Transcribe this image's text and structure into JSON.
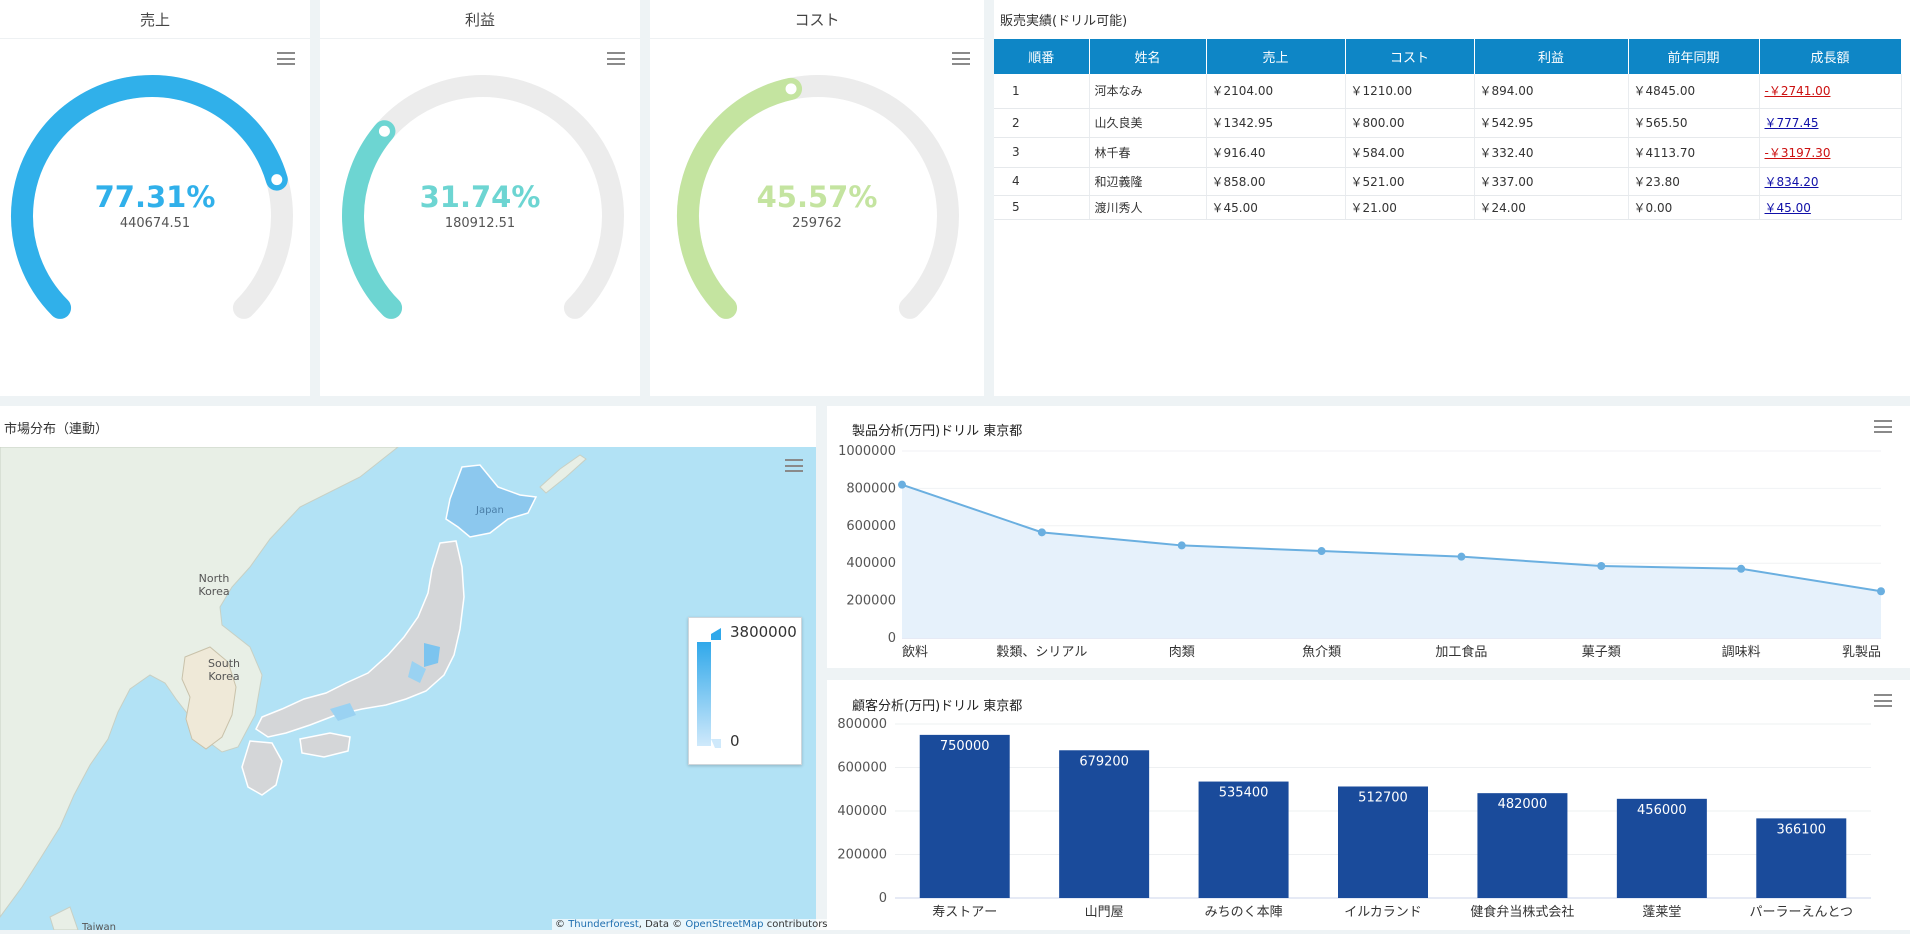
{
  "gauges": [
    {
      "title": "売上",
      "percent_label": "77.31%",
      "percent": 77.31,
      "value": "440674.51",
      "color": "#30b0ea"
    },
    {
      "title": "利益",
      "percent_label": "31.74%",
      "percent": 31.74,
      "value": "180912.51",
      "color": "#6dd5d2"
    },
    {
      "title": "コスト",
      "percent_label": "45.57%",
      "percent": 45.57,
      "value": "259762",
      "color": "#c4e4a0"
    }
  ],
  "sales_table": {
    "title": "販売実績(ドリル可能)",
    "headers": [
      "順番",
      "姓名",
      "売上",
      "コスト",
      "利益",
      "前年同期",
      "成長額"
    ],
    "rows": [
      [
        "1",
        "河本なみ",
        "￥2104.00",
        "￥1210.00",
        "￥894.00",
        "￥4845.00",
        "-￥2741.00"
      ],
      [
        "2",
        "山久良美",
        "￥1342.95",
        "￥800.00",
        "￥542.95",
        "￥565.50",
        "￥777.45"
      ],
      [
        "3",
        "林千春",
        "￥916.40",
        "￥584.00",
        "￥332.40",
        "￥4113.70",
        "-￥3197.30"
      ],
      [
        "4",
        "和辺義隆",
        "￥858.00",
        "￥521.00",
        "￥337.00",
        "￥23.80",
        "￥834.20"
      ],
      [
        "5",
        "渡川秀人",
        "￥45.00",
        "￥21.00",
        "￥24.00",
        "￥0.00",
        "￥45.00"
      ]
    ]
  },
  "map": {
    "title": "市場分布（連動）",
    "labels": {
      "japan": "Japan",
      "north_korea": "North Korea",
      "south_korea": "South Korea",
      "taiwan": "Taiwan"
    },
    "legend_max": "3800000",
    "legend_min": "0",
    "attribution": {
      "prefix": "© ",
      "thunderforest": "Thunderforest",
      "mid": ", Data © ",
      "osm": "OpenStreetMap",
      "suffix": " contributors"
    }
  },
  "line_chart": {
    "title": "製品分析(万円)ドリル 東京都",
    "chart_data": {
      "type": "area",
      "categories": [
        "飲料",
        "穀類、シリアル",
        "肉類",
        "魚介類",
        "加工食品",
        "菓子類",
        "調味料",
        "乳製品"
      ],
      "values": [
        820000,
        565000,
        495000,
        465000,
        435000,
        385000,
        370000,
        250000
      ],
      "ylim": [
        0,
        1000000
      ],
      "yticks": [
        "0",
        "200000",
        "400000",
        "600000",
        "800000",
        "1000000"
      ],
      "color": "#6aafe0"
    }
  },
  "bar_chart": {
    "title": "顧客分析(万円)ドリル 東京都",
    "chart_data": {
      "type": "bar",
      "categories": [
        "寿ストアー",
        "山門屋",
        "みちのく本陣",
        "イルカランド",
        "健食弁当株式会社",
        "蓬莱堂",
        "パーラーえんとつ"
      ],
      "values": [
        750000,
        679200,
        535400,
        512700,
        482000,
        456000,
        366100
      ],
      "value_labels": [
        "750000",
        "679200",
        "535400",
        "512700",
        "482000",
        "456000",
        "366100"
      ],
      "ylim": [
        0,
        800000
      ],
      "yticks": [
        "0",
        "200000",
        "400000",
        "600000",
        "800000"
      ],
      "color": "#1a4b9b",
      "highlight_category_color": "#c0392b"
    }
  }
}
